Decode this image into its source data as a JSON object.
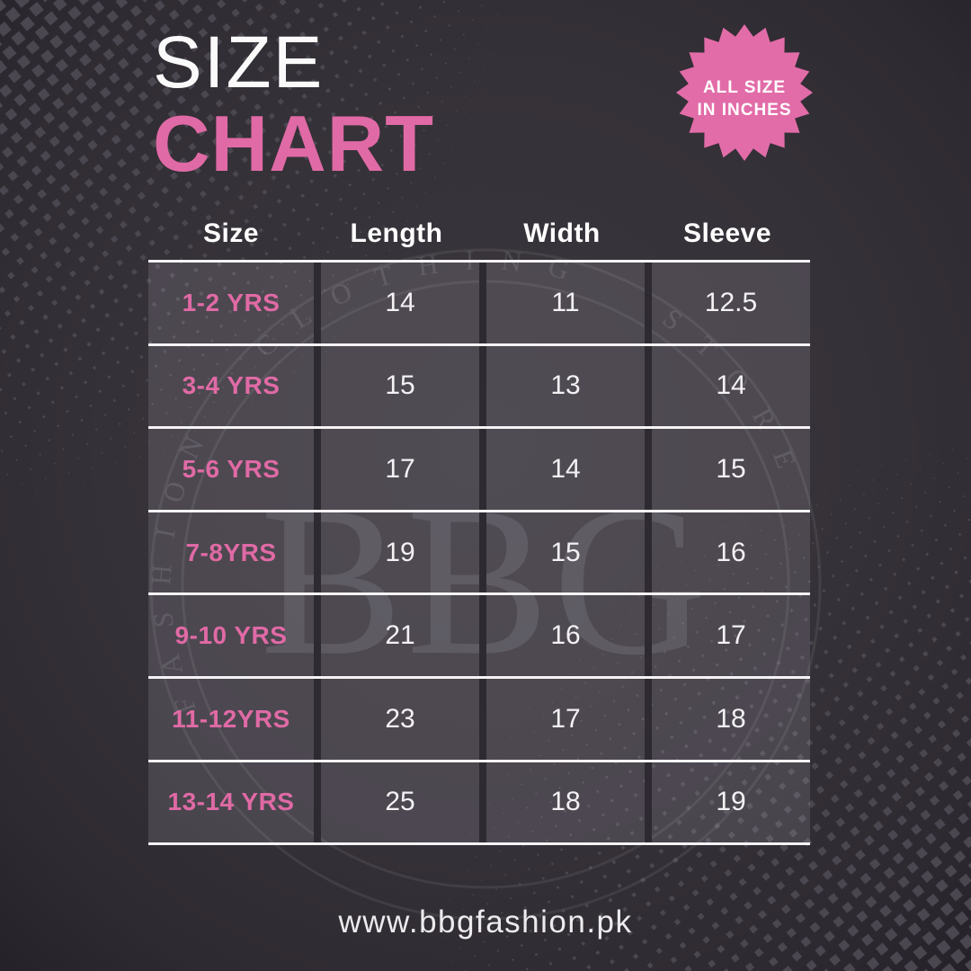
{
  "header": {
    "title_line1": "SIZE",
    "title_line2": "CHART"
  },
  "badge": {
    "line1": "ALL SIZE",
    "line2": "IN INCHES"
  },
  "watermark": {
    "brand": "BBG",
    "ring_text": "FASHION CLOTHING STORE"
  },
  "footer": {
    "website": "www.bbgfashion.pk"
  },
  "colors": {
    "accent_pink": "#e06aa5",
    "badge_pink": "#e26ca8",
    "page_background": "#363239",
    "table_line": "#f5f3f6",
    "cell_background": "#4a4650"
  },
  "chart_data": {
    "type": "table",
    "title": "Size Chart",
    "note": "All size in inches",
    "columns": [
      "Size",
      "Length",
      "Width",
      "Sleeve"
    ],
    "rows": [
      [
        "1-2 YRS",
        "14",
        "11",
        "12.5"
      ],
      [
        "3-4 YRS",
        "15",
        "13",
        "14"
      ],
      [
        "5-6 YRS",
        "17",
        "14",
        "15"
      ],
      [
        "7-8YRS",
        "19",
        "15",
        "16"
      ],
      [
        "9-10 YRS",
        "21",
        "16",
        "17"
      ],
      [
        "11-12YRS",
        "23",
        "17",
        "18"
      ],
      [
        "13-14 YRS",
        "25",
        "18",
        "19"
      ]
    ]
  }
}
